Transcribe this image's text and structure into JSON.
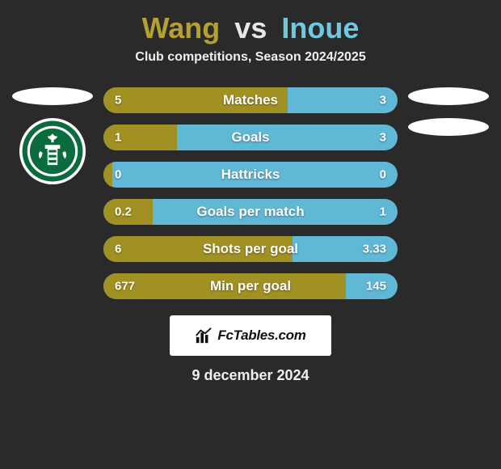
{
  "colors": {
    "background": "#2a2a2a",
    "player1": "#a19022",
    "player2": "#5fb8d6",
    "title_p1": "#b5a12f",
    "title_p2": "#6fc8e0",
    "title_vs": "#e8e8e8",
    "bar_bg": "#5fb8d6",
    "text": "#ffffff"
  },
  "title": {
    "p1": "Wang",
    "vs": "vs",
    "p2": "Inoue"
  },
  "subtitle": "Club competitions, Season 2024/2025",
  "bars": [
    {
      "label": "Matches",
      "left": "5",
      "right": "3",
      "left_pct": 62.5
    },
    {
      "label": "Goals",
      "left": "1",
      "right": "3",
      "left_pct": 25.0
    },
    {
      "label": "Hattricks",
      "left": "0",
      "right": "0",
      "left_pct": 3.0
    },
    {
      "label": "Goals per match",
      "left": "0.2",
      "right": "1",
      "left_pct": 16.7
    },
    {
      "label": "Shots per goal",
      "left": "6",
      "right": "3.33",
      "left_pct": 64.3
    },
    {
      "label": "Min per goal",
      "left": "677",
      "right": "145",
      "left_pct": 82.4
    }
  ],
  "footer": {
    "brand": "FcTables.com",
    "date": "9 december 2024"
  }
}
